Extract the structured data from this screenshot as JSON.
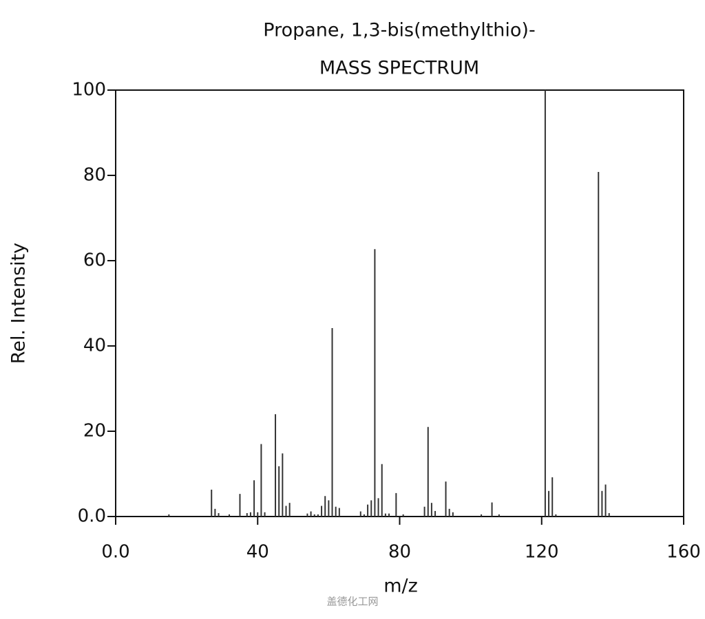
{
  "chart_data": {
    "type": "bar",
    "title": "Propane, 1,3-bis(methylthio)-",
    "subtitle": "MASS SPECTRUM",
    "x_label": "m/z",
    "y_label": "Rel. Intensity",
    "watermark": "盖德化工网",
    "color": "#333333",
    "x": [
      15,
      27,
      28,
      29,
      32,
      35,
      37,
      38,
      39,
      40,
      41,
      42,
      45,
      46,
      47,
      48,
      49,
      54,
      55,
      56,
      57,
      58,
      59,
      60,
      61,
      62,
      63,
      69,
      70,
      71,
      72,
      73,
      74,
      75,
      76,
      77,
      79,
      81,
      87,
      88,
      89,
      90,
      93,
      94,
      95,
      103,
      106,
      108,
      121,
      122,
      123,
      124,
      136,
      137,
      138,
      139
    ],
    "values": [
      0.5,
      6.3,
      1.8,
      0.8,
      0.5,
      5.3,
      0.8,
      1,
      8.5,
      1,
      17,
      1,
      24,
      11.8,
      14.8,
      2.5,
      3.2,
      0.7,
      1.2,
      0.5,
      0.5,
      2.5,
      4.8,
      3.8,
      44.2,
      2.3,
      2,
      1.2,
      0.5,
      2.8,
      3.8,
      62.7,
      4.3,
      12.3,
      0.7,
      0.7,
      5.5,
      0.5,
      2.3,
      21,
      3.2,
      1.3,
      8.2,
      1.8,
      1,
      0.5,
      3.3,
      0.5,
      100,
      6,
      9.2,
      0.5,
      80.8,
      6,
      7.5,
      0.8
    ],
    "xlim": [
      0,
      160
    ],
    "xticks": [
      {
        "value": 0,
        "label": "0.0"
      },
      40,
      80,
      120,
      160
    ],
    "ylim": [
      0,
      100
    ],
    "yticks": [
      {
        "value": 0,
        "label": "0.0"
      },
      20,
      40,
      60,
      80,
      100
    ]
  }
}
